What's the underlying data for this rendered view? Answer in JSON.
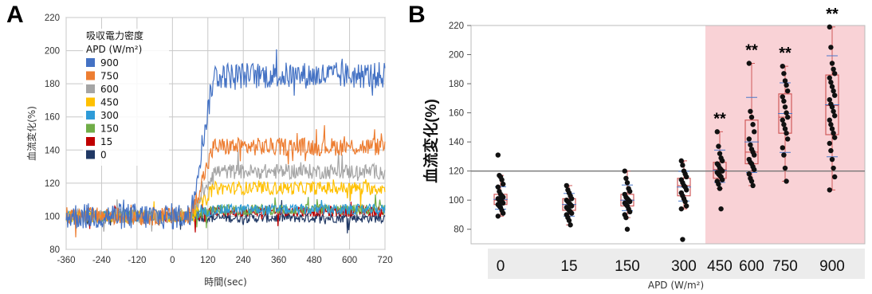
{
  "panels": {
    "a": "A",
    "b": "B"
  },
  "chart_data": [
    {
      "type": "line",
      "panel": "A",
      "xlabel": "時間(sec)",
      "ylabel": "血流変化(%)",
      "xlim": [
        -360,
        720
      ],
      "ylim": [
        80,
        220
      ],
      "xticks": [
        -360,
        -240,
        -120,
        0,
        120,
        240,
        360,
        480,
        600,
        720
      ],
      "yticks": [
        80,
        100,
        120,
        140,
        160,
        180,
        200,
        220
      ],
      "grid": true,
      "legend_title_line1": "吸収電力密度",
      "legend_title_line2": "APD (W/m²)",
      "legend_placement": "top-left",
      "series": [
        {
          "name": "900",
          "color": "#4472c4",
          "plateau": 185
        },
        {
          "name": "750",
          "color": "#ed7d31",
          "plateau": 142
        },
        {
          "name": "600",
          "color": "#a5a5a5",
          "plateau": 127
        },
        {
          "name": "450",
          "color": "#ffc000",
          "plateau": 117
        },
        {
          "name": "300",
          "color": "#2e9bd8",
          "plateau": 104
        },
        {
          "name": "150",
          "color": "#70ad47",
          "plateau": 104
        },
        {
          "name": "15",
          "color": "#c00000",
          "plateau": 103
        },
        {
          "name": "0",
          "color": "#203864",
          "plateau": 99
        }
      ]
    },
    {
      "type": "box",
      "panel": "B",
      "xlabel": "APD (W/m²)",
      "ylabel": "血流変化(%)",
      "ylim": [
        70,
        220
      ],
      "yticks": [
        80,
        100,
        120,
        140,
        160,
        180,
        200,
        220
      ],
      "reference_line": 120,
      "highlight_from_category": "450",
      "categories": [
        "0",
        "15",
        "150",
        "300",
        "450",
        "600",
        "750",
        "900"
      ],
      "significance": [
        "",
        "",
        "",
        "",
        "**",
        "**",
        "**",
        "**"
      ],
      "boxes": [
        {
          "category": "0",
          "q1": 97,
          "median": 100,
          "q3": 104,
          "whisker_low": 89,
          "whisker_high": 117,
          "points": [
            131,
            117,
            116,
            114,
            111,
            109,
            106,
            104,
            103,
            102,
            101,
            100,
            100,
            99,
            98,
            97,
            96,
            95,
            93,
            91,
            89
          ]
        },
        {
          "category": "15",
          "q1": 93,
          "median": 97,
          "q3": 101,
          "whisker_low": 83,
          "whisker_high": 110,
          "points": [
            110,
            107,
            105,
            103,
            101,
            100,
            99,
            98,
            97,
            96,
            95,
            94,
            93,
            92,
            91,
            90,
            88,
            86,
            83
          ]
        },
        {
          "category": "150",
          "q1": 96,
          "median": 100,
          "q3": 104,
          "whisker_low": 88,
          "whisker_high": 120,
          "points": [
            120,
            115,
            112,
            108,
            106,
            104,
            102,
            101,
            100,
            99,
            98,
            97,
            96,
            94,
            92,
            90,
            88,
            80
          ]
        },
        {
          "category": "300",
          "q1": 103,
          "median": 110,
          "q3": 115,
          "whisker_low": 94,
          "whisker_high": 127,
          "points": [
            127,
            124,
            120,
            118,
            116,
            114,
            112,
            110,
            109,
            107,
            105,
            103,
            101,
            99,
            96,
            94,
            73
          ]
        },
        {
          "category": "450",
          "q1": 115,
          "median": 121,
          "q3": 126,
          "whisker_low": 108,
          "whisker_high": 147,
          "points": [
            147,
            137,
            132,
            129,
            127,
            125,
            124,
            122,
            121,
            120,
            119,
            118,
            117,
            116,
            114,
            113,
            111,
            108,
            94
          ]
        },
        {
          "category": "600",
          "q1": 125,
          "median": 133,
          "q3": 155,
          "whisker_low": 110,
          "whisker_high": 194,
          "points": [
            194,
            161,
            157,
            152,
            147,
            142,
            138,
            135,
            133,
            131,
            128,
            126,
            125,
            123,
            121,
            118,
            115,
            113,
            110
          ]
        },
        {
          "category": "750",
          "q1": 146,
          "median": 157,
          "q3": 173,
          "whisker_low": 113,
          "whisker_high": 192,
          "points": [
            192,
            187,
            182,
            179,
            175,
            171,
            168,
            164,
            160,
            157,
            155,
            152,
            149,
            146,
            142,
            136,
            131,
            122,
            113
          ]
        },
        {
          "category": "900",
          "q1": 145,
          "median": 165,
          "q3": 186,
          "whisker_low": 107,
          "whisker_high": 219,
          "points": [
            219,
            205,
            194,
            190,
            187,
            184,
            181,
            178,
            175,
            172,
            169,
            166,
            164,
            161,
            158,
            155,
            152,
            149,
            146,
            143,
            139,
            134,
            128,
            122,
            116,
            107
          ]
        }
      ]
    }
  ]
}
